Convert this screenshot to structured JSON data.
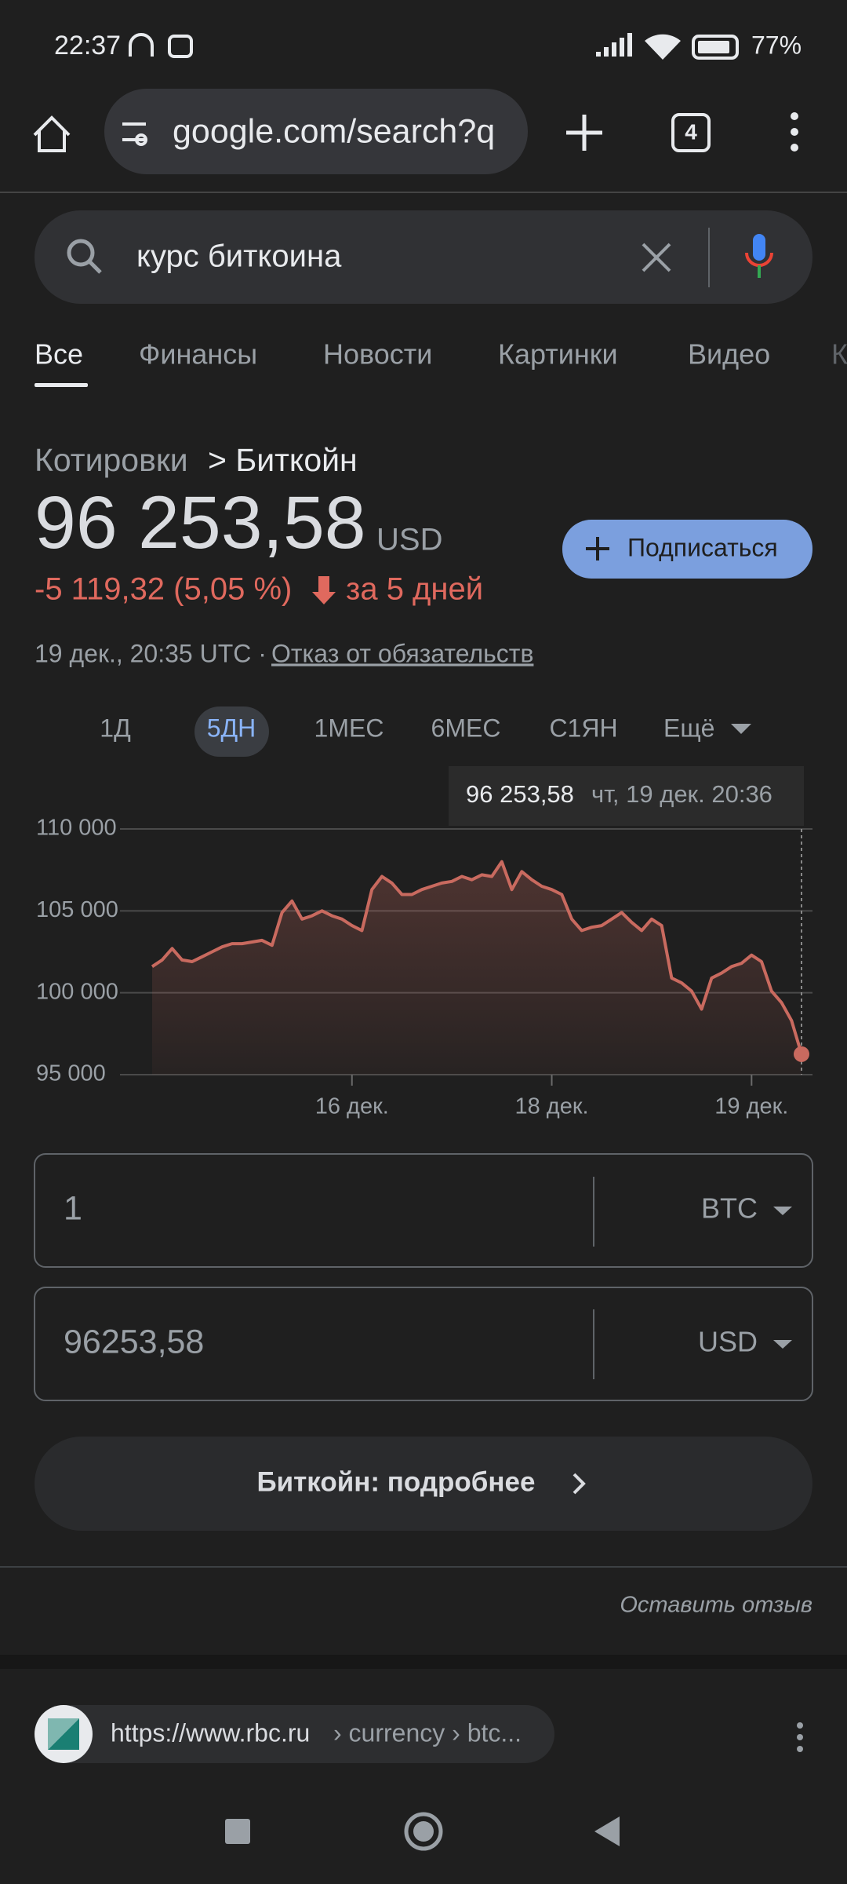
{
  "status_bar": {
    "time": "22:37",
    "battery": "77%"
  },
  "browser": {
    "url": "google.com/search?q",
    "tab_count": "4"
  },
  "search": {
    "query": "курс биткоина"
  },
  "tabs": [
    "Все",
    "Финансы",
    "Новости",
    "Картинки",
    "Видео",
    "К"
  ],
  "quote": {
    "breadcrumb_parent": "Котировки",
    "breadcrumb_child": "> Биткойн",
    "price": "96 253,58",
    "currency": "USD",
    "change": "-5 119,32 (5,05 %)",
    "period": "за 5 дней",
    "timestamp": "19 дек., 20:35 UTC ·",
    "disclaimer": "Отказ от обязательств",
    "subscribe": "Подписаться"
  },
  "ranges": [
    "1Д",
    "5ДН",
    "1МЕС",
    "6МЕС",
    "С1ЯН",
    "Ещё"
  ],
  "tooltip": {
    "value": "96 253,58",
    "time": "чт, 19 дек. 20:36"
  },
  "chart_data": {
    "type": "line",
    "color": "#c96a5f",
    "grid": true,
    "categories": [
      null,
      null,
      null,
      null,
      null,
      null,
      null,
      null,
      null,
      null,
      null,
      null,
      null,
      null,
      null,
      null,
      null,
      null,
      null,
      null,
      "16 дек.",
      null,
      null,
      null,
      null,
      null,
      null,
      null,
      null,
      null,
      null,
      null,
      null,
      null,
      null,
      null,
      null,
      null,
      null,
      null,
      "18 дек.",
      null,
      null,
      null,
      null,
      null,
      null,
      null,
      null,
      null,
      null,
      null,
      null,
      null,
      null,
      null,
      null,
      null,
      null,
      null,
      "19 дек.",
      null,
      null,
      null,
      null,
      null
    ],
    "values": [
      101600,
      102000,
      102700,
      102000,
      101900,
      102200,
      102500,
      102800,
      103000,
      103000,
      103100,
      103200,
      102900,
      104900,
      105600,
      104500,
      104700,
      105000,
      104700,
      104500,
      104100,
      103800,
      106300,
      107100,
      106700,
      106000,
      106000,
      106300,
      106500,
      106700,
      106800,
      107100,
      106900,
      107200,
      107100,
      108000,
      106300,
      107400,
      106900,
      106500,
      106300,
      106000,
      104500,
      103800,
      104000,
      104100,
      104500,
      104900,
      104300,
      103800,
      104500,
      104100,
      100900,
      100600,
      100100,
      99000,
      100900,
      101200,
      101600,
      101800,
      102300,
      101900,
      100100,
      99400,
      98300,
      96253.58
    ],
    "ylim": [
      95000,
      110000
    ],
    "yticks": [
      {
        "value": 95000,
        "label": "95 000"
      },
      {
        "value": 100000,
        "label": "100 000"
      },
      {
        "value": 105000,
        "label": "105 000"
      },
      {
        "value": 110000,
        "label": "110 000"
      }
    ]
  },
  "converter": {
    "rows": [
      {
        "amount": "1",
        "unit": "BTC"
      },
      {
        "amount": "96253,58",
        "unit": "USD"
      }
    ]
  },
  "more_button": "Биткойн: подробнее",
  "feedback": "Оставить отзыв",
  "result": {
    "url": "https://www.rbc.ru",
    "path": "› currency › btc..."
  }
}
